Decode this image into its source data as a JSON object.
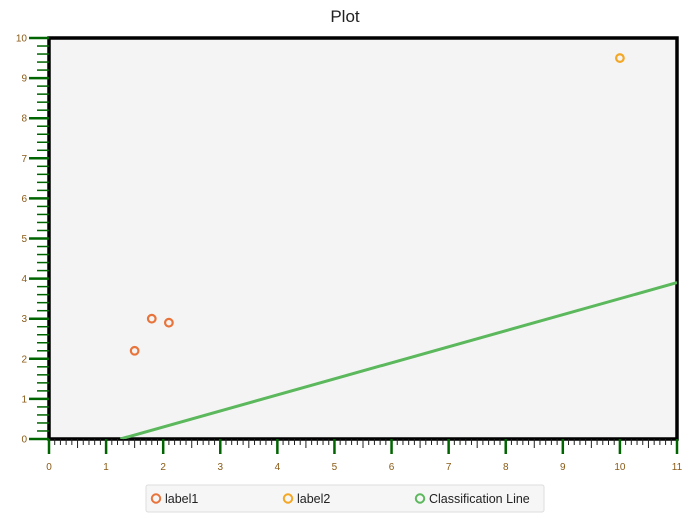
{
  "chart_data": {
    "type": "scatter",
    "title": "Plot",
    "xlabel": "",
    "ylabel": "",
    "xlim": [
      0,
      11
    ],
    "ylim": [
      0,
      10
    ],
    "xticks": [
      0,
      1,
      2,
      3,
      4,
      5,
      6,
      7,
      8,
      9,
      10,
      11
    ],
    "yticks": [
      0,
      1,
      2,
      3,
      4,
      5,
      6,
      7,
      8,
      9,
      10
    ],
    "grid": false,
    "legend_position": "bottom",
    "series": [
      {
        "name": "label1",
        "kind": "scatter",
        "color": "#e8743b",
        "points": [
          {
            "x": 1.5,
            "y": 2.2
          },
          {
            "x": 1.8,
            "y": 3.0
          },
          {
            "x": 2.1,
            "y": 2.9
          }
        ]
      },
      {
        "name": "label2",
        "kind": "scatter",
        "color": "#f5a623",
        "points": [
          {
            "x": 10.0,
            "y": 9.5
          }
        ]
      },
      {
        "name": "Classification Line",
        "kind": "line",
        "color": "#5cb85c",
        "points": [
          {
            "x": 1.25,
            "y": 0.0
          },
          {
            "x": 11.0,
            "y": 3.9
          }
        ]
      }
    ],
    "colors": {
      "plot_background": "#f4f4f4",
      "plot_border": "#000000",
      "axis": "#006400",
      "tick_label": "#8a5a16"
    }
  }
}
